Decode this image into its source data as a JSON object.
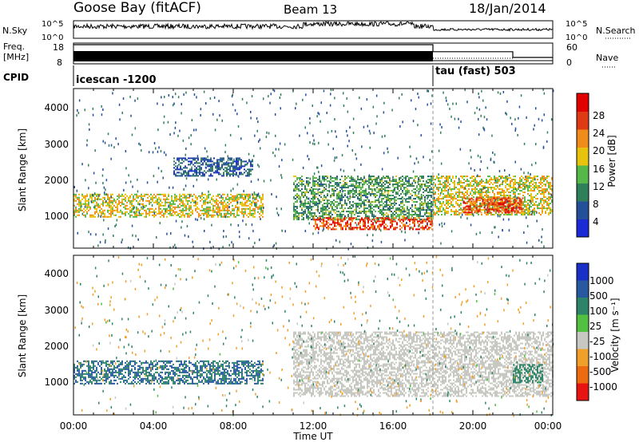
{
  "header": {
    "station": "Goose Bay (fitACF)",
    "beam": "Beam 13",
    "date": "18/Jan/2014"
  },
  "strip": {
    "nsky_label": "N.Sky",
    "nsearch_label": "N.Search",
    "noise_ticks_left": [
      "10^5",
      "10^0"
    ],
    "noise_ticks_right": [
      "10^5",
      "10^0"
    ],
    "freq_label_1": "Freq.",
    "freq_label_2": "[MHz]",
    "freq_ticks": [
      "18",
      "8"
    ],
    "nave_label": "Nave",
    "nave_ticks": [
      "60",
      "0"
    ],
    "cpid_label": "CPID",
    "cpid_1": "icescan -1200",
    "cpid_2": "tau (fast) 503"
  },
  "power_panel": {
    "ylabel": "Slant Range [km]",
    "yticks": [
      "4000",
      "3000",
      "2000",
      "1000"
    ],
    "colorbar_title": "Power [dB]",
    "colorbar_ticks": [
      "28",
      "24",
      "20",
      "16",
      "12",
      "8",
      "4"
    ],
    "colors": [
      "#1a2bd6",
      "#24509a",
      "#2f7f5a",
      "#56b848",
      "#e8c30e",
      "#ef8c1a",
      "#e03a14",
      "#e00000"
    ]
  },
  "velocity_panel": {
    "ylabel": "Slant Range [km]",
    "yticks": [
      "4000",
      "3000",
      "2000",
      "1000"
    ],
    "colorbar_title": "Velocity [m s⁻¹]",
    "colorbar_ticks": [
      "1000",
      "500",
      "100",
      "25",
      "-25",
      "-100",
      "-500",
      "-1000"
    ],
    "colors": [
      "#1930c8",
      "#2858a0",
      "#2e8468",
      "#52c040",
      "#c8c8c2",
      "#f0a028",
      "#ee6a10",
      "#e81414"
    ]
  },
  "xaxis": {
    "label": "Time UT",
    "ticks": [
      "00:00",
      "04:00",
      "08:00",
      "12:00",
      "16:00",
      "20:00",
      "00:00"
    ]
  },
  "chart_data": {
    "type": "heatmap",
    "x_unit": "hours UT",
    "xlim": [
      0,
      24
    ],
    "ylim": [
      200,
      4600
    ],
    "mode_change_hour": 18.0,
    "nave_change_hour": 22.0,
    "cpid_segments": [
      {
        "name": "icescan -1200",
        "start": 0,
        "end": 18.0
      },
      {
        "name": "tau (fast) 503",
        "start": 18.0,
        "end": 24
      }
    ],
    "freq_segments": [
      {
        "start": 0,
        "end": 18.0,
        "min_mhz": 10,
        "max_mhz": 16
      },
      {
        "start": 18.0,
        "end": 24,
        "min_mhz": 10,
        "max_mhz": 10
      }
    ],
    "nave_segments": [
      {
        "start": 0,
        "end": 18.0,
        "value": 60
      },
      {
        "start": 18.0,
        "end": 22.0,
        "value": 38
      },
      {
        "start": 22.0,
        "end": 24,
        "value": 20
      }
    ],
    "power_regions": [
      {
        "t0": 0.0,
        "t1": 9.5,
        "r0": 1050,
        "r1": 1700,
        "power_db": 18
      },
      {
        "t0": 5.0,
        "t1": 9.0,
        "r0": 2200,
        "r1": 2700,
        "power_db": 6
      },
      {
        "t0": 11.0,
        "t1": 18.0,
        "r0": 1000,
        "r1": 2200,
        "power_db": 12
      },
      {
        "t0": 12.0,
        "t1": 18.0,
        "r0": 700,
        "r1": 1050,
        "power_db": 26
      },
      {
        "t0": 18.0,
        "t1": 24.0,
        "r0": 1100,
        "r1": 2200,
        "power_db": 18
      },
      {
        "t0": 19.5,
        "t1": 22.5,
        "r0": 1200,
        "r1": 1600,
        "power_db": 26
      }
    ],
    "velocity_regions": [
      {
        "t0": 0.0,
        "t1": 9.5,
        "r0": 1050,
        "r1": 1700,
        "velocity": 300
      },
      {
        "t0": 11.0,
        "t1": 24.0,
        "r0": 700,
        "r1": 2500,
        "velocity": 0
      },
      {
        "t0": 22.0,
        "t1": 23.5,
        "r0": 1100,
        "r1": 1600,
        "velocity": 80
      }
    ]
  }
}
